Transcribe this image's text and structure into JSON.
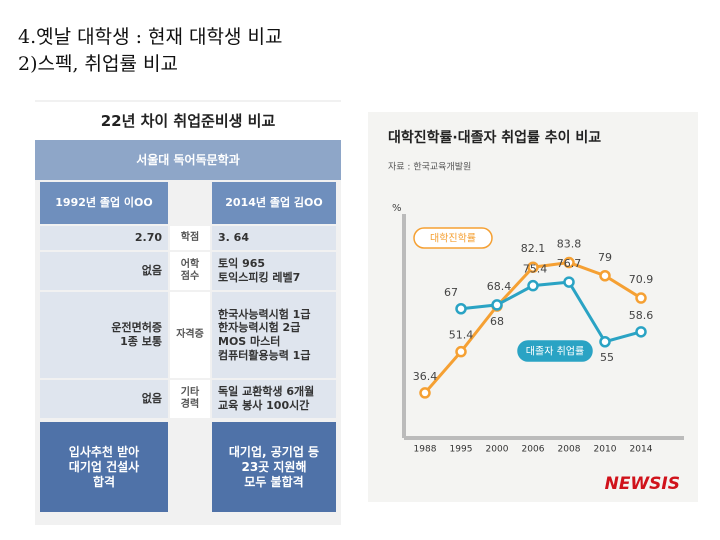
{
  "slide": {
    "title": [
      "4.옛날 대학생 : 현재 대학생 비교",
      "2)스펙, 취업률 비교"
    ]
  },
  "table": {
    "title": "22년 차이 취업준비생 비교",
    "subtitle": "서울대 독어독문학과",
    "headers": [
      "1992년 졸업 이OO",
      "2014년 졸업 김OO"
    ],
    "rows": [
      {
        "label": [
          "학점"
        ],
        "left": [
          "2.70"
        ],
        "right": [
          "3. 64"
        ]
      },
      {
        "label": [
          "어학",
          "점수"
        ],
        "left": [
          "없음"
        ],
        "right": [
          "토익 965",
          "토익스피킹 레벨7"
        ]
      },
      {
        "label": [
          "자격증"
        ],
        "left": [
          "운전면허증",
          "1종 보통"
        ],
        "right": [
          "한국사능력시험 1급",
          "한자능력시험 2급",
          "MOS 마스터",
          "컴퓨터활용능력 1급"
        ]
      },
      {
        "label": [
          "기타",
          "경력"
        ],
        "left": [
          "없음"
        ],
        "right": [
          "독일 교환학생 6개월",
          "교육 봉사 100시간"
        ]
      }
    ],
    "footer": {
      "left": [
        "입사추천 받아",
        "대기업 건설사",
        "합격"
      ],
      "right": [
        "대기업, 공기업 등",
        "23곳 지원해",
        "모두 불합격"
      ]
    }
  },
  "chart_data": {
    "type": "line",
    "title": "대학진학률·대졸자 취업률 추이 비교",
    "source": "자료 : 한국교육개발원",
    "y_label": "%",
    "categories": [
      "1988",
      "1995",
      "2000",
      "2006",
      "2008",
      "2010",
      "2014"
    ],
    "series": [
      {
        "name": "대학진학률",
        "color": "#f5a033",
        "values": [
          36.4,
          51.4,
          68,
          82.1,
          83.8,
          79,
          70.9
        ]
      },
      {
        "name": "대졸자 취업률",
        "color": "#2aa3c4",
        "values": [
          null,
          67,
          68.4,
          75.4,
          76.7,
          55,
          58.6
        ]
      }
    ],
    "ylim": [
      20,
      100
    ],
    "logo": "NEWSIS"
  }
}
